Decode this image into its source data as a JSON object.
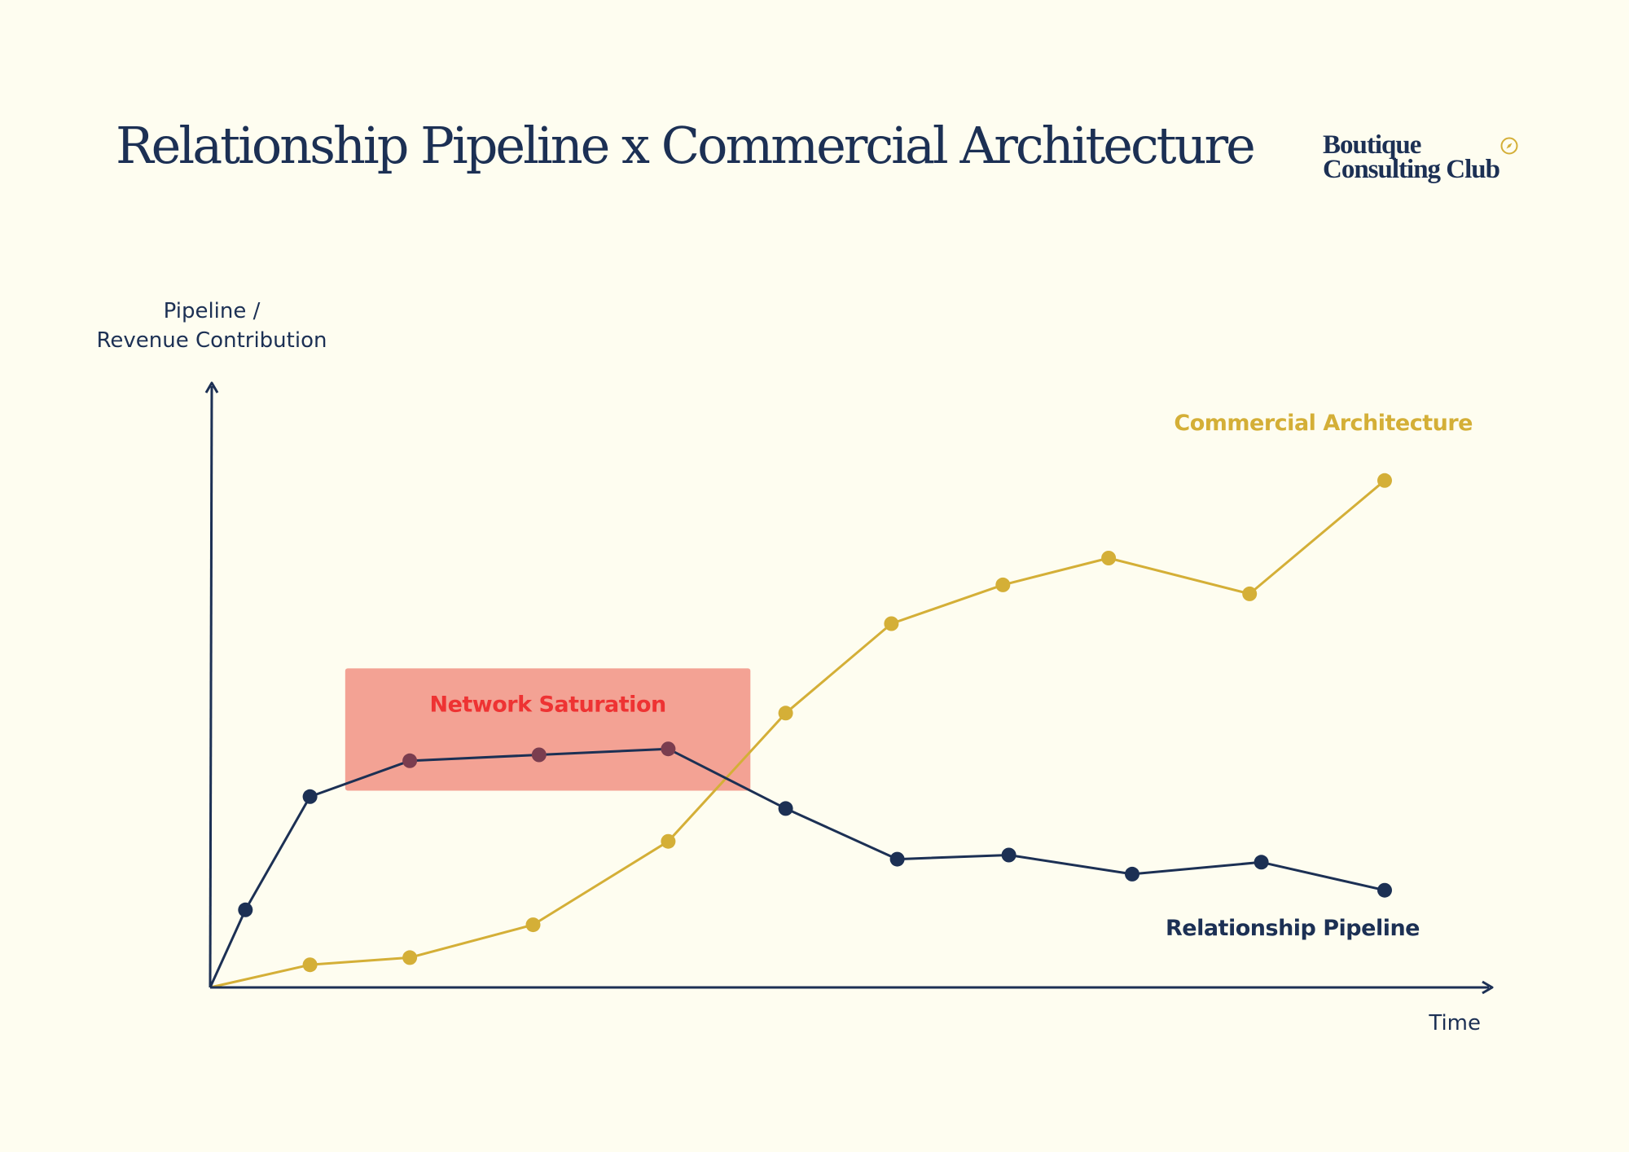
{
  "header": {
    "title": "Relationship Pipeline x Commercial Architecture",
    "brand_line1": "Boutique",
    "brand_line2": "Consulting Club",
    "brand_icon": "compass-icon"
  },
  "colors": {
    "background": "#fefdf0",
    "navy": "#1c3054",
    "gold": "#d4af37",
    "highlight_fill": "#f3a294",
    "highlight_text": "#ee3333",
    "overlap_marker": "#7a3d4f"
  },
  "chart_data": {
    "type": "line",
    "title": "Relationship Pipeline x Commercial Architecture",
    "ylabel_line1": "Pipeline /",
    "ylabel_line2": "Revenue Contribution",
    "xlabel": "Time",
    "x_ticks": "none",
    "y_ticks": "none",
    "grid": false,
    "xlim": [
      0,
      10
    ],
    "ylim": [
      0,
      10
    ],
    "series": [
      {
        "name": "Relationship Pipeline",
        "color": "#1c3054",
        "points": [
          [
            0,
            0
          ],
          [
            0.3,
            1.3
          ],
          [
            0.85,
            3.2
          ],
          [
            1.7,
            3.8
          ],
          [
            2.8,
            3.9
          ],
          [
            3.9,
            4.0
          ],
          [
            4.9,
            3.0
          ],
          [
            5.85,
            2.15
          ],
          [
            6.8,
            2.22
          ],
          [
            7.85,
            1.9
          ],
          [
            8.95,
            2.1
          ],
          [
            10.0,
            1.63
          ]
        ]
      },
      {
        "name": "Commercial Architecture",
        "color": "#d4af37",
        "points": [
          [
            0,
            0
          ],
          [
            0.85,
            0.38
          ],
          [
            1.7,
            0.5
          ],
          [
            2.75,
            1.05
          ],
          [
            3.9,
            2.45
          ],
          [
            4.9,
            4.6
          ],
          [
            5.8,
            6.1
          ],
          [
            6.75,
            6.75
          ],
          [
            7.65,
            7.2
          ],
          [
            8.85,
            6.6
          ],
          [
            10.0,
            8.5
          ]
        ]
      }
    ],
    "annotations": [
      {
        "text": "Network Saturation",
        "x_range": [
          1.15,
          4.6
        ],
        "y_range": [
          3.3,
          5.35
        ]
      }
    ],
    "legend": "inline labels at series ends (top-right and bottom-right)"
  }
}
